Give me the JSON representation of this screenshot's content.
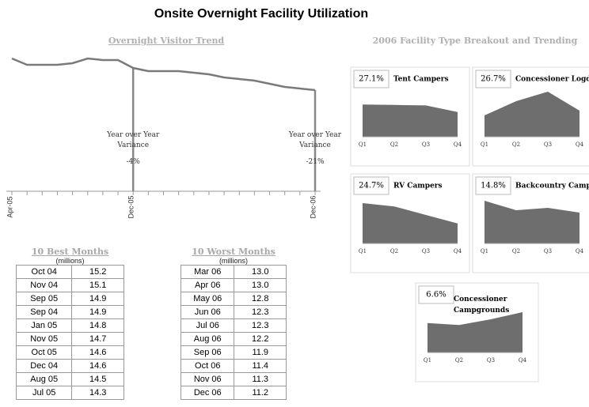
{
  "title": "Onsite Overnight Facility Utilization",
  "breakout_title": "2006 Facility Type Breakout and Trending",
  "chart_data": [
    {
      "type": "line",
      "title": "Overnight Visitor Trend",
      "categories": [
        "Apr-05",
        null,
        null,
        null,
        null,
        null,
        null,
        null,
        "Dec-05",
        null,
        null,
        null,
        null,
        null,
        null,
        null,
        null,
        null,
        null,
        null,
        "Dec-06"
      ],
      "values": [
        15.6,
        15.2,
        15.2,
        15.2,
        15.3,
        15.6,
        15.5,
        15.5,
        15.0,
        14.8,
        14.8,
        14.8,
        14.7,
        14.6,
        14.4,
        14.3,
        14.2,
        14.0,
        13.8,
        13.7,
        13.6
      ],
      "ylim": [
        10,
        16.5
      ],
      "color": "#7a7a7a",
      "annotations": [
        {
          "category": "Dec-05",
          "label": "Year over Year Variance",
          "value": "-4%"
        },
        {
          "category": "Dec-06",
          "label": "Year over Year Variance",
          "value": "-21%"
        }
      ]
    },
    {
      "type": "area",
      "title": "Tent Campers",
      "share": "27.1%",
      "categories": [
        "Q1",
        "Q2",
        "Q3",
        "Q4"
      ],
      "values": [
        68,
        67,
        66,
        52
      ],
      "ylim": [
        0,
        100
      ],
      "color": "#6e6e6e"
    },
    {
      "type": "area",
      "title": "Concessioner Logding",
      "share": "26.7%",
      "categories": [
        "Q1",
        "Q2",
        "Q3",
        "Q4"
      ],
      "values": [
        45,
        75,
        95,
        55
      ],
      "ylim": [
        0,
        100
      ],
      "color": "#6e6e6e"
    },
    {
      "type": "area",
      "title": "RV Campers",
      "share": "24.7%",
      "categories": [
        "Q1",
        "Q2",
        "Q3",
        "Q4"
      ],
      "values": [
        85,
        78,
        60,
        42
      ],
      "ylim": [
        0,
        100
      ],
      "color": "#6e6e6e"
    },
    {
      "type": "area",
      "title": "Backcountry Campers",
      "share": "14.8%",
      "categories": [
        "Q1",
        "Q2",
        "Q3",
        "Q4"
      ],
      "values": [
        90,
        70,
        75,
        65
      ],
      "ylim": [
        0,
        100
      ],
      "color": "#6e6e6e"
    },
    {
      "type": "area",
      "title": "Concessioner Campgrounds",
      "share": "6.6%",
      "categories": [
        "Q1",
        "Q2",
        "Q3",
        "Q4"
      ],
      "values": [
        62,
        58,
        70,
        85
      ],
      "ylim": [
        0,
        100
      ],
      "color": "#6e6e6e"
    }
  ],
  "tables": [
    {
      "title": "10 Best Months",
      "subtitle": "(millions)",
      "rows": [
        [
          "Oct 04",
          "15.2"
        ],
        [
          "Nov 04",
          "15.1"
        ],
        [
          "Sep 05",
          "14.9"
        ],
        [
          "Sep 04",
          "14.9"
        ],
        [
          "Jan 05",
          "14.8"
        ],
        [
          "Nov 05",
          "14.7"
        ],
        [
          "Oct 05",
          "14.6"
        ],
        [
          "Dec 04",
          "14.6"
        ],
        [
          "Aug 05",
          "14.5"
        ],
        [
          "Jul 05",
          "14.3"
        ]
      ]
    },
    {
      "title": "10 Worst Months",
      "subtitle": "(millions)",
      "rows": [
        [
          "Mar 06",
          "13.0"
        ],
        [
          "Apr 06",
          "13.0"
        ],
        [
          "May 06",
          "12.8"
        ],
        [
          "Jun 06",
          "12.3"
        ],
        [
          "Jul 06",
          "12.3"
        ],
        [
          "Aug 06",
          "12.2"
        ],
        [
          "Sep 06",
          "11.9"
        ],
        [
          "Oct 06",
          "11.4"
        ],
        [
          "Nov 06",
          "11.3"
        ],
        [
          "Dec 06",
          "11.2"
        ]
      ]
    }
  ]
}
